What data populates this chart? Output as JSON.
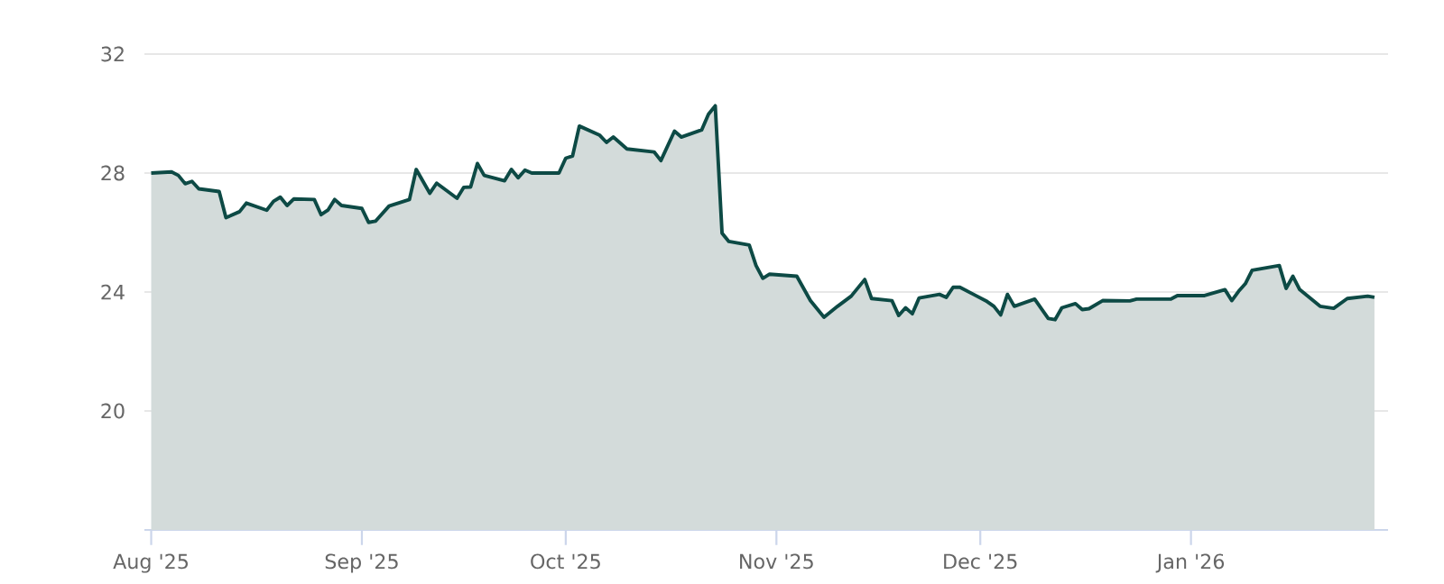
{
  "chart_data": {
    "type": "area",
    "color": "#0d4a45",
    "grid": "y",
    "marker": "none",
    "ylim": [
      16,
      32
    ],
    "yticks": [
      20,
      24,
      28,
      32
    ],
    "xlim": [
      "2025-07-31",
      "2026-01-30"
    ],
    "xticks": [
      {
        "value": "2025-08-01",
        "label": "Aug '25"
      },
      {
        "value": "2025-09-01",
        "label": "Sep '25"
      },
      {
        "value": "2025-10-01",
        "label": "Oct '25"
      },
      {
        "value": "2025-11-01",
        "label": "Nov '25"
      },
      {
        "value": "2025-12-01",
        "label": "Dec '25"
      },
      {
        "value": "2026-01-01",
        "label": "Jan '26"
      }
    ],
    "x": [
      "2025-08-01",
      "2025-08-04",
      "2025-08-05",
      "2025-08-06",
      "2025-08-07",
      "2025-08-08",
      "2025-08-11",
      "2025-08-12",
      "2025-08-14",
      "2025-08-15",
      "2025-08-18",
      "2025-08-19",
      "2025-08-20",
      "2025-08-21",
      "2025-08-22",
      "2025-08-25",
      "2025-08-26",
      "2025-08-27",
      "2025-08-28",
      "2025-08-29",
      "2025-09-01",
      "2025-09-02",
      "2025-09-03",
      "2025-09-05",
      "2025-09-08",
      "2025-09-09",
      "2025-09-11",
      "2025-09-12",
      "2025-09-15",
      "2025-09-16",
      "2025-09-17",
      "2025-09-18",
      "2025-09-19",
      "2025-09-22",
      "2025-09-23",
      "2025-09-24",
      "2025-09-25",
      "2025-09-26",
      "2025-09-30",
      "2025-10-01",
      "2025-10-02",
      "2025-10-03",
      "2025-10-06",
      "2025-10-07",
      "2025-10-08",
      "2025-10-10",
      "2025-10-14",
      "2025-10-15",
      "2025-10-17",
      "2025-10-18",
      "2025-10-21",
      "2025-10-22",
      "2025-10-23",
      "2025-10-24",
      "2025-10-25",
      "2025-10-28",
      "2025-10-29",
      "2025-10-30",
      "2025-10-31",
      "2025-11-04",
      "2025-11-06",
      "2025-11-08",
      "2025-11-10",
      "2025-11-12",
      "2025-11-14",
      "2025-11-15",
      "2025-11-18",
      "2025-11-19",
      "2025-11-20",
      "2025-11-21",
      "2025-11-22",
      "2025-11-25",
      "2025-11-26",
      "2025-11-27",
      "2025-11-28",
      "2025-11-30",
      "2025-12-02",
      "2025-12-03",
      "2025-12-04",
      "2025-12-05",
      "2025-12-06",
      "2025-12-09",
      "2025-12-11",
      "2025-12-12",
      "2025-12-13",
      "2025-12-15",
      "2025-12-16",
      "2025-12-17",
      "2025-12-19",
      "2025-12-23",
      "2025-12-24",
      "2025-12-29",
      "2025-12-30",
      "2026-01-03",
      "2026-01-06",
      "2026-01-07",
      "2026-01-08",
      "2026-01-09",
      "2026-01-10",
      "2026-01-14",
      "2026-01-15",
      "2026-01-16",
      "2026-01-17",
      "2026-01-20",
      "2026-01-22",
      "2026-01-24",
      "2026-01-27",
      "2026-01-28"
    ],
    "values": [
      28.0,
      28.04,
      27.92,
      27.64,
      27.72,
      27.47,
      27.38,
      26.5,
      26.7,
      26.99,
      26.75,
      27.05,
      27.19,
      26.91,
      27.13,
      27.11,
      26.6,
      26.75,
      27.11,
      26.91,
      26.81,
      26.34,
      26.38,
      26.89,
      27.11,
      28.12,
      27.32,
      27.66,
      27.15,
      27.52,
      27.53,
      28.32,
      27.92,
      27.74,
      28.12,
      27.84,
      28.1,
      28.0,
      28.0,
      28.5,
      28.57,
      29.58,
      29.27,
      29.03,
      29.21,
      28.81,
      28.71,
      28.42,
      29.41,
      29.21,
      29.45,
      29.98,
      30.26,
      25.98,
      25.7,
      25.58,
      24.89,
      24.46,
      24.6,
      24.53,
      23.71,
      23.15,
      23.52,
      23.86,
      24.42,
      23.78,
      23.71,
      23.21,
      23.47,
      23.27,
      23.8,
      23.92,
      23.82,
      24.16,
      24.16,
      23.92,
      23.68,
      23.52,
      23.23,
      23.92,
      23.52,
      23.76,
      23.11,
      23.07,
      23.47,
      23.61,
      23.41,
      23.44,
      23.71,
      23.7,
      23.76,
      23.76,
      23.88,
      23.88,
      24.08,
      23.71,
      24.02,
      24.28,
      24.73,
      24.89,
      24.12,
      24.53,
      24.08,
      23.52,
      23.45,
      23.78,
      23.86,
      23.82
    ]
  }
}
